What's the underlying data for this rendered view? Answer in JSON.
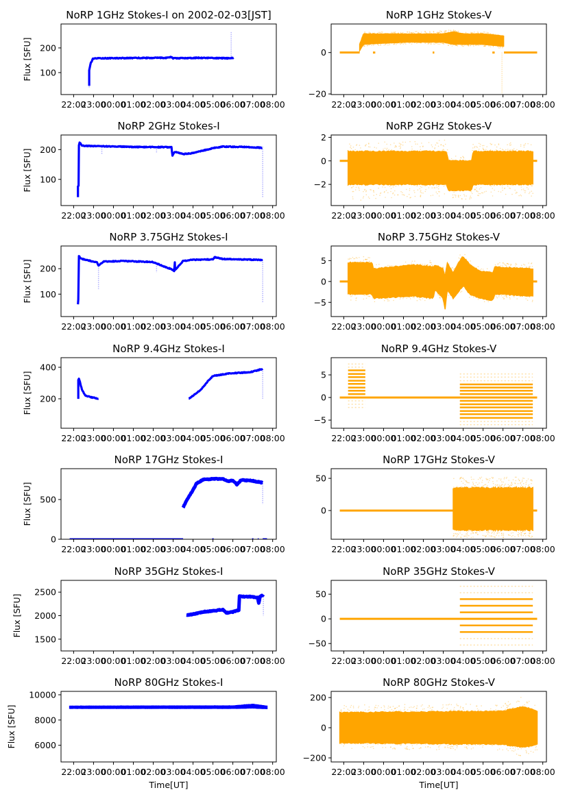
{
  "chart_data": [
    {
      "type": "line",
      "title": "NoRP 1GHz Stokes-I on 2002-02-03[JST]",
      "ylabel": "Flux [SFU]",
      "xlabel": "",
      "color": "#0000ff",
      "ylim": [
        11,
        297
      ],
      "yticks": [
        "100",
        "200"
      ],
      "line": [
        [
          [
            "22:47",
            45
          ],
          [
            "22:47",
            110
          ],
          [
            "22:52",
            140
          ],
          [
            "22:58",
            155
          ],
          [
            "23:10",
            158
          ],
          [
            "02:40",
            160
          ],
          [
            "02:55",
            163
          ],
          [
            "03:00",
            158
          ],
          [
            "04:20",
            160
          ],
          [
            "05:50",
            158
          ],
          [
            "06:02",
            160
          ]
        ]
      ],
      "spikes": [
        [
          "22:47",
          40,
          110
        ],
        [
          "05:55",
          160,
          265
        ]
      ]
    },
    {
      "type": "scatter",
      "title": "NoRP 1GHz Stokes-V",
      "ylabel": "",
      "xlabel": "",
      "color": "#ffa500",
      "ylim": [
        -20.3,
        13.8
      ],
      "yticks": [
        "0",
        "-20"
      ],
      "zero": [
        [
          "21:48",
          "22:48"
        ],
        [
          "23:28",
          "23:35"
        ],
        [
          "02:28",
          "02:33"
        ],
        [
          "05:28",
          "05:35"
        ],
        [
          "06:03",
          "07:43"
        ]
      ],
      "band": [
        [
          "22:48",
          1,
          4,
          0.5,
          5
        ],
        [
          "23:00",
          4,
          9,
          3,
          10
        ],
        [
          "01:00",
          5,
          9,
          4,
          10
        ],
        [
          "03:00",
          5,
          9,
          4,
          10.5
        ],
        [
          "03:30",
          4,
          10,
          3,
          11
        ],
        [
          "04:00",
          4,
          9,
          3,
          10
        ],
        [
          "05:00",
          4,
          9,
          3,
          10
        ],
        [
          "06:02",
          3,
          8,
          2,
          9
        ]
      ],
      "spikes": [
        [
          "05:57",
          0,
          -20
        ]
      ]
    },
    {
      "type": "line",
      "title": "NoRP 2GHz Stokes-I",
      "ylabel": "Flux [SFU]",
      "xlabel": "",
      "color": "#0000ff",
      "ylim": [
        12,
        249
      ],
      "yticks": [
        "100",
        "200"
      ],
      "line": [
        [
          [
            "22:13",
            40
          ],
          [
            "22:13",
            75
          ],
          [
            "22:15",
            80
          ],
          [
            "22:16",
            215
          ],
          [
            "22:18",
            225
          ],
          [
            "22:25",
            213
          ],
          [
            "23:30",
            211
          ],
          [
            "01:00",
            209
          ],
          [
            "02:55",
            208
          ],
          [
            "02:58",
            180
          ],
          [
            "03:05",
            192
          ],
          [
            "03:30",
            185
          ],
          [
            "04:00",
            188
          ],
          [
            "05:00",
            205
          ],
          [
            "05:30",
            210
          ],
          [
            "06:30",
            209
          ],
          [
            "07:28",
            206
          ]
        ]
      ],
      "spikes": [
        [
          "07:30",
          210,
          40
        ],
        [
          "23:25",
          210,
          185
        ],
        [
          "02:10",
          208,
          190
        ]
      ]
    },
    {
      "type": "scatter",
      "title": "NoRP 2GHz Stokes-V",
      "ylabel": "",
      "xlabel": "",
      "color": "#ffa500",
      "ylim": [
        -3.8,
        2.2
      ],
      "yticks": [
        "2",
        "0",
        "-2"
      ],
      "zero": [
        [
          "21:48",
          "22:13"
        ],
        [
          "07:30",
          "07:43"
        ]
      ],
      "band": [
        [
          "22:13",
          -2.0,
          0.8,
          -3.4,
          1.5
        ],
        [
          "03:10",
          -2.0,
          0.8,
          -3.0,
          1.8
        ],
        [
          "03:15",
          -2.5,
          0,
          -3.2,
          0.4
        ],
        [
          "04:25",
          -2.5,
          0,
          -3.3,
          0.4
        ],
        [
          "04:30",
          -2.0,
          0.8,
          -3.0,
          1.6
        ],
        [
          "07:30",
          -2.0,
          0.8,
          -3.0,
          1.5
        ]
      ]
    },
    {
      "type": "line",
      "title": "NoRP 3.75GHz Stokes-I",
      "ylabel": "Flux [SFU]",
      "xlabel": "",
      "color": "#0000ff",
      "ylim": [
        12,
        289
      ],
      "yticks": [
        "100",
        "200"
      ],
      "line": [
        [
          [
            "22:13",
            60
          ],
          [
            "22:14",
            80
          ],
          [
            "22:16",
            250
          ],
          [
            "22:20",
            240
          ],
          [
            "22:45",
            232
          ],
          [
            "23:10",
            225
          ],
          [
            "23:15",
            212
          ],
          [
            "23:30",
            228
          ],
          [
            "00:30",
            230
          ],
          [
            "02:00",
            226
          ],
          [
            "02:30",
            210
          ],
          [
            "03:00",
            195
          ],
          [
            "03:03",
            190
          ],
          [
            "03:05",
            225
          ],
          [
            "03:06",
            195
          ],
          [
            "03:30",
            230
          ],
          [
            "04:00",
            235
          ],
          [
            "05:00",
            236
          ],
          [
            "05:05",
            245
          ],
          [
            "05:30",
            238
          ],
          [
            "06:30",
            236
          ],
          [
            "07:30",
            234
          ]
        ]
      ],
      "spikes": [
        [
          "23:15",
          212,
          120
        ],
        [
          "02:10",
          210,
          185
        ],
        [
          "07:30",
          234,
          65
        ]
      ]
    },
    {
      "type": "scatter",
      "title": "NoRP 3.75GHz Stokes-V",
      "ylabel": "",
      "xlabel": "",
      "color": "#ffa500",
      "ylim": [
        -8.4,
        8.5
      ],
      "yticks": [
        "5",
        "0",
        "-5"
      ],
      "zero": [
        [
          "21:48",
          "22:13"
        ],
        [
          "07:30",
          "07:43"
        ]
      ],
      "band": [
        [
          "22:13",
          -3,
          4.5,
          -5,
          6
        ],
        [
          "23:25",
          -3,
          4.5,
          -4,
          6
        ],
        [
          "23:30",
          -4,
          3,
          -5,
          4
        ],
        [
          "01:30",
          -3.5,
          4,
          -4.5,
          5
        ],
        [
          "02:30",
          -4,
          3.5,
          -5,
          5
        ],
        [
          "02:35",
          -2,
          4,
          -3,
          5
        ],
        [
          "03:00",
          -4,
          3,
          -5,
          4
        ],
        [
          "03:05",
          -7,
          1,
          -7.8,
          2
        ],
        [
          "03:12",
          -2,
          4.5,
          -3,
          5
        ],
        [
          "03:30",
          -4,
          2,
          -5,
          3
        ],
        [
          "03:50",
          -2,
          5,
          -3,
          6.5
        ],
        [
          "04:00",
          -1,
          6,
          -2,
          7
        ],
        [
          "04:20",
          -3,
          4,
          -4,
          5
        ],
        [
          "04:50",
          -4,
          2.5,
          -5,
          3.5
        ],
        [
          "05:30",
          -4.5,
          2,
          -5.5,
          3
        ],
        [
          "05:35",
          -3,
          3.5,
          -4,
          4.5
        ],
        [
          "07:30",
          -3.5,
          3,
          -5,
          4.5
        ]
      ]
    },
    {
      "type": "line",
      "title": "NoRP 9.4GHz Stokes-I",
      "ylabel": "Flux [SFU]",
      "xlabel": "",
      "color": "#0000ff",
      "ylim": [
        13,
        461
      ],
      "yticks": [
        "200",
        "400"
      ],
      "line": [
        [
          [
            "22:14",
            200
          ],
          [
            "22:14",
            320
          ],
          [
            "22:16",
            330
          ],
          [
            "22:25",
            260
          ],
          [
            "22:35",
            220
          ],
          [
            "22:50",
            212
          ],
          [
            "23:15",
            200
          ]
        ],
        [
          [
            "03:47",
            200
          ],
          [
            "04:25",
            260
          ],
          [
            "04:40",
            300
          ],
          [
            "05:00",
            345
          ],
          [
            "05:45",
            360
          ],
          [
            "06:55",
            370
          ],
          [
            "07:30",
            390
          ]
        ]
      ],
      "spikes": [
        [
          "07:30",
          390,
          200
        ]
      ]
    },
    {
      "type": "scatter",
      "title": "NoRP 9.4GHz Stokes-V",
      "ylabel": "",
      "xlabel": "",
      "color": "#ffa500",
      "ylim": [
        -6.8,
        8.8
      ],
      "yticks": [
        "5",
        "0",
        "-5"
      ],
      "zero": [
        [
          "21:48",
          "07:43"
        ]
      ],
      "levels": [
        {
          "from": "22:13",
          "to": "23:05",
          "dense": [
            0.75,
            1.5,
            2.2,
            3,
            3.7,
            4.5,
            5.2,
            6
          ],
          "sparse": [
            -0.75,
            -1.5,
            -2.2,
            6.7,
            7.4
          ]
        },
        {
          "from": "03:50",
          "to": "07:30",
          "dense": [
            -4.5,
            -3.7,
            -3,
            -2.2,
            -1.5,
            -0.75,
            0.75,
            1.5,
            2.2,
            2.9
          ],
          "sparse": [
            3.7,
            4.5,
            5.2,
            -5.3,
            -6
          ]
        }
      ]
    },
    {
      "type": "line",
      "title": "NoRP 17GHz Stokes-I",
      "ylabel": "Flux [SFU]",
      "xlabel": "",
      "color": "#0000ff",
      "ylim": [
        0,
        888
      ],
      "yticks": [
        "0",
        "500"
      ],
      "zero": [
        [
          "21:48",
          "03:30"
        ],
        [
          "04:58",
          "05:02"
        ],
        [
          "06:58",
          "07:02"
        ],
        [
          "07:15",
          "07:18"
        ],
        [
          "07:30",
          "07:43"
        ]
      ],
      "line": [
        [
          [
            "03:30",
            400
          ],
          [
            "03:45",
            520
          ],
          [
            "04:00",
            620
          ],
          [
            "04:10",
            700
          ],
          [
            "04:30",
            750
          ],
          [
            "05:00",
            760
          ],
          [
            "05:30",
            760
          ],
          [
            "05:45",
            730
          ],
          [
            "06:00",
            740
          ],
          [
            "06:12",
            690
          ],
          [
            "06:25",
            745
          ],
          [
            "07:00",
            735
          ],
          [
            "07:30",
            710
          ]
        ]
      ],
      "spikes": [
        [
          "07:30",
          700,
          440
        ]
      ]
    },
    {
      "type": "scatter",
      "title": "NoRP 17GHz Stokes-V",
      "ylabel": "",
      "xlabel": "",
      "color": "#ffa500",
      "ylim": [
        -44.6,
        65
      ],
      "yticks": [
        "50",
        "0"
      ],
      "zero": [
        [
          "21:48",
          "03:30"
        ],
        [
          "07:30",
          "07:43"
        ]
      ],
      "band": [
        [
          "03:30",
          -30,
          35,
          -42,
          52
        ],
        [
          "07:30",
          -30,
          35,
          -42,
          52
        ]
      ]
    },
    {
      "type": "line",
      "title": "NoRP 35GHz Stokes-I",
      "ylabel": "Flux [SFU]",
      "xlabel": "",
      "color": "#0000ff",
      "ylim": [
        1250,
        2750
      ],
      "yticks": [
        "1500",
        "2000",
        "2500"
      ],
      "line": [
        [
          [
            "03:40",
            2010
          ],
          [
            "04:00",
            2030
          ],
          [
            "04:30",
            2080
          ],
          [
            "05:00",
            2100
          ],
          [
            "05:30",
            2130
          ],
          [
            "05:40",
            2060
          ],
          [
            "06:00",
            2080
          ],
          [
            "06:18",
            2120
          ],
          [
            "06:20",
            2410
          ],
          [
            "07:00",
            2400
          ],
          [
            "07:15",
            2380
          ],
          [
            "07:18",
            2260
          ],
          [
            "07:22",
            2400
          ],
          [
            "07:32",
            2450
          ]
        ]
      ],
      "spikes": [
        [
          "07:32",
          2400,
          2000
        ]
      ]
    },
    {
      "type": "scatter",
      "title": "NoRP 35GHz Stokes-V",
      "ylabel": "",
      "xlabel": "",
      "color": "#ffa500",
      "ylim": [
        -65,
        78
      ],
      "yticks": [
        "50",
        "0",
        "-50"
      ],
      "zero": [
        [
          "21:48",
          "07:43"
        ]
      ],
      "levels": [
        {
          "from": "03:50",
          "to": "07:30",
          "dense": [
            -26.6,
            -13.3,
            13.3,
            26.6,
            40
          ],
          "sparse": [
            -40,
            53,
            -53,
            66
          ]
        }
      ]
    },
    {
      "type": "line",
      "title": "NoRP 80GHz Stokes-I",
      "ylabel": "Flux [SFU]",
      "xlabel": "Time[UT]",
      "color": "#0000ff",
      "ylim": [
        4680,
        10270
      ],
      "yticks": [
        "6000",
        "8000",
        "10000"
      ],
      "band": [
        [
          "21:48",
          8920,
          9100,
          8900,
          9120
        ],
        [
          "06:00",
          8920,
          9120,
          8900,
          9150
        ],
        [
          "07:00",
          8950,
          9250,
          8930,
          9280
        ],
        [
          "07:43",
          8900,
          9100,
          8880,
          9120
        ]
      ]
    },
    {
      "type": "scatter",
      "title": "NoRP 80GHz Stokes-V",
      "ylabel": "",
      "xlabel": "Time[UT]",
      "color": "#ffa500",
      "ylim": [
        -227,
        241
      ],
      "yticks": [
        "200",
        "0",
        "-200"
      ],
      "band": [
        [
          "21:48",
          -100,
          100,
          -140,
          150
        ],
        [
          "06:00",
          -110,
          110,
          -150,
          160
        ],
        [
          "07:00",
          -130,
          140,
          -195,
          210
        ],
        [
          "07:43",
          -110,
          110,
          -150,
          150
        ]
      ]
    }
  ],
  "xticks": [
    "22:00",
    "23:00",
    "00:00",
    "01:00",
    "02:00",
    "03:00",
    "04:00",
    "05:00",
    "06:00",
    "07:00",
    "08:00"
  ],
  "xlim": [
    "21:22",
    "08:11"
  ]
}
